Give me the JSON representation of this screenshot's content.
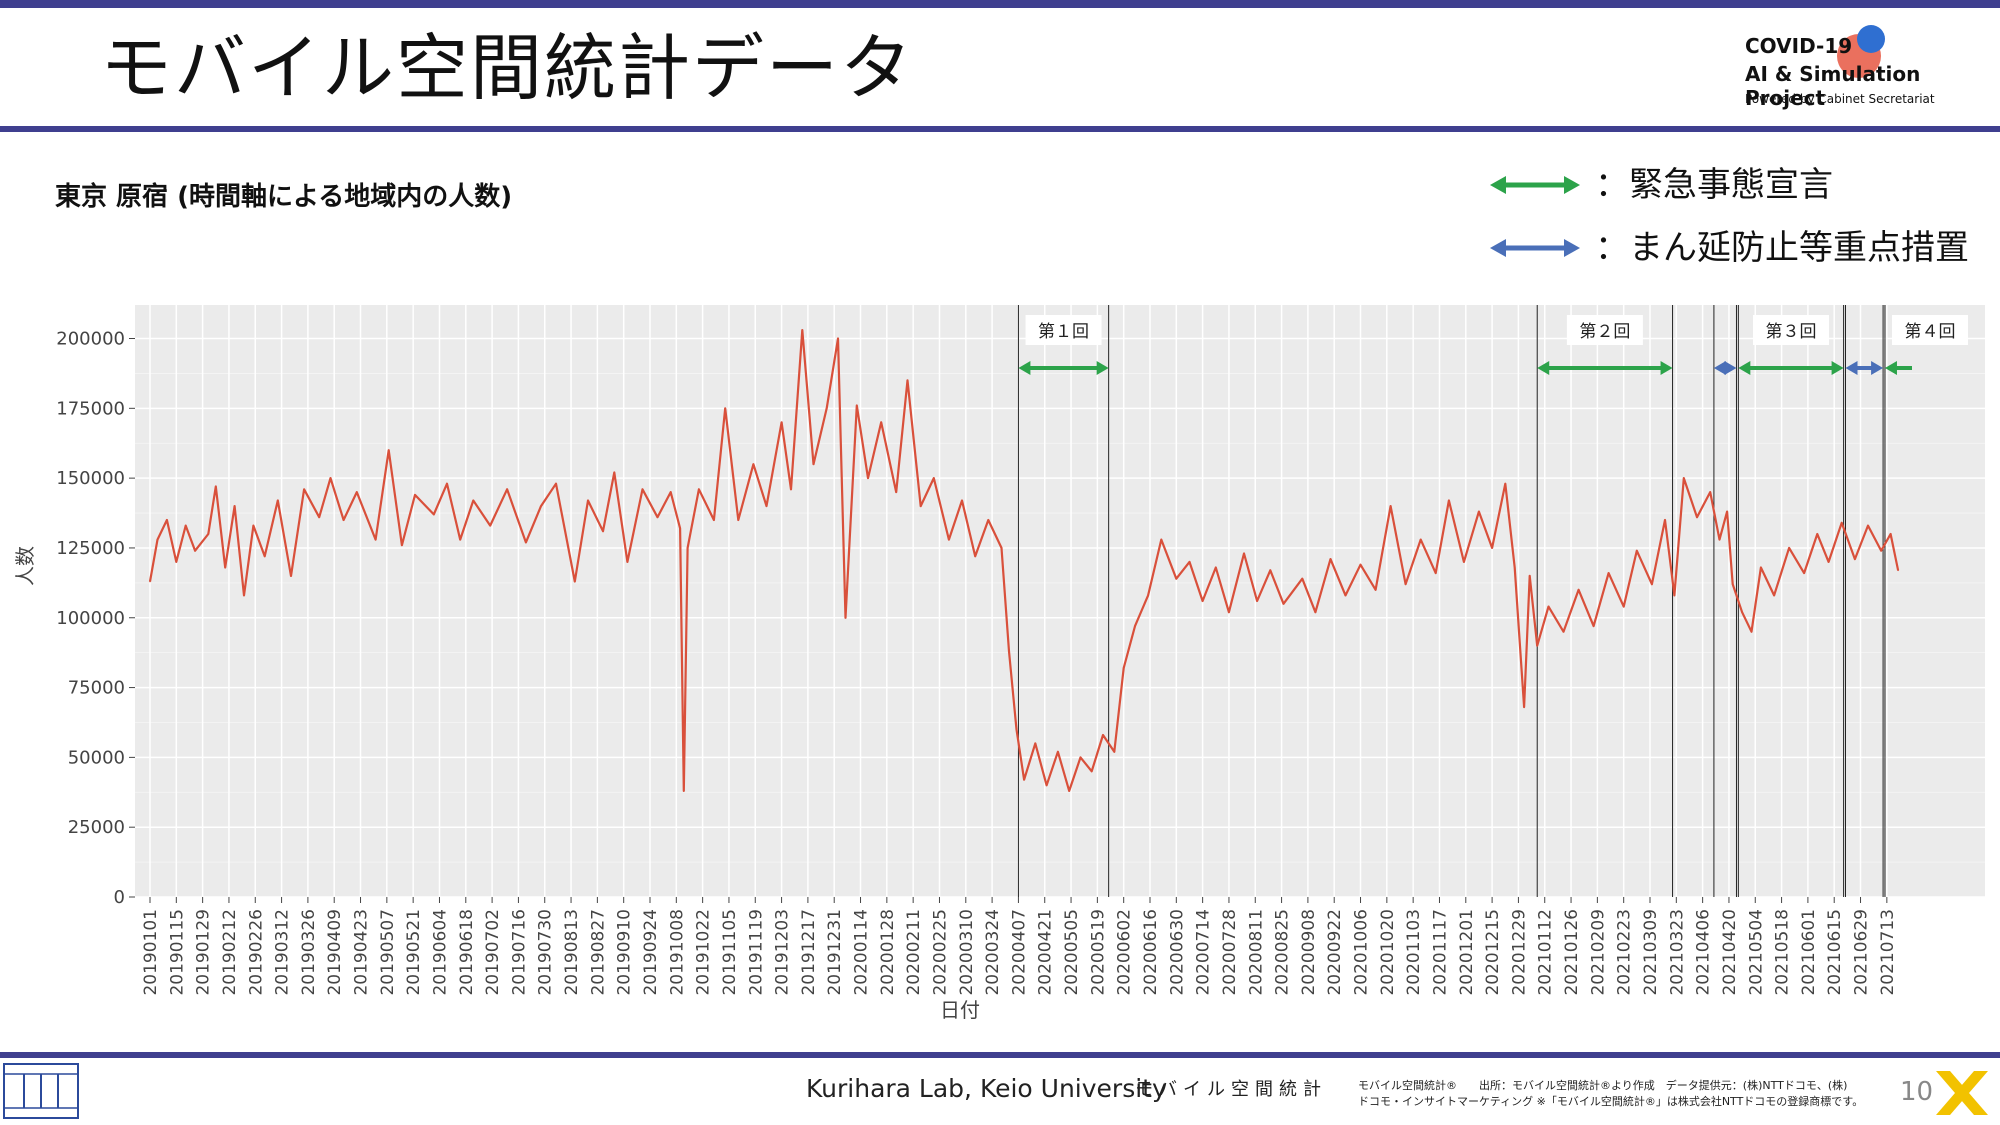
{
  "slide": {
    "title": "モバイル空間統計データ",
    "subtitle": "東京 原宿 (時間軸による地域内の人数)",
    "page_number": "10",
    "footer_lab": "Kurihara Lab, Keio University",
    "footer_logo_text": "モバイル空間統計",
    "footer_note_line1": "モバイル空間統計®　　出所：モバイル空間統計®より作成　データ提供元：(株)NTTドコモ、(株)",
    "footer_note_line2": "ドコモ・インサイトマーケティング ※「モバイル空間統計®」は株式会社NTTドコモの登録商標です。"
  },
  "logo": {
    "line1": "COVID-19",
    "line2": "AI & Simulation Project",
    "line3": "Powered by Cabinet Secretariat"
  },
  "legend": [
    {
      "label": "：緊急事態宣言",
      "color": "#2ca34a"
    },
    {
      "label": "：まん延防止等重点措置",
      "color": "#4a6fb8"
    }
  ],
  "chart_data": {
    "type": "line",
    "xlabel": "日付",
    "ylabel": "人数",
    "ylim": [
      0,
      212000
    ],
    "x_range": [
      "2019-01-01",
      "2021-07-20"
    ],
    "y_ticks": [
      0,
      25000,
      50000,
      75000,
      100000,
      125000,
      150000,
      175000,
      200000
    ],
    "x_tick_labels": [
      "20190101",
      "20190115",
      "20190129",
      "20190212",
      "20190226",
      "20190312",
      "20190326",
      "20190409",
      "20190423",
      "20190507",
      "20190521",
      "20190604",
      "20190618",
      "20190702",
      "20190716",
      "20190730",
      "20190813",
      "20190827",
      "20190910",
      "20190924",
      "20191008",
      "20191022",
      "20191105",
      "20191119",
      "20191203",
      "20191217",
      "20191231",
      "20200114",
      "20200128",
      "20200211",
      "20200225",
      "20200310",
      "20200324",
      "20200407",
      "20200421",
      "20200505",
      "20200519",
      "20200602",
      "20200616",
      "20200630",
      "20200714",
      "20200728",
      "20200811",
      "20200825",
      "20200908",
      "20200922",
      "20201006",
      "20201020",
      "20201103",
      "20201117",
      "20201201",
      "20201215",
      "20201229",
      "20210112",
      "20210126",
      "20210209",
      "20210223",
      "20210309",
      "20210323",
      "20210406",
      "20210420",
      "20210504",
      "20210518",
      "20210601",
      "20210615",
      "20210629",
      "20210713"
    ],
    "grid": true,
    "line_color": "#d9503b",
    "background": "#ebebeb",
    "series": [
      {
        "points": [
          [
            "2019-01-01",
            113000
          ],
          [
            "2019-01-05",
            128000
          ],
          [
            "2019-01-10",
            135000
          ],
          [
            "2019-01-15",
            120000
          ],
          [
            "2019-01-20",
            133000
          ],
          [
            "2019-01-25",
            124000
          ],
          [
            "2019-02-01",
            130000
          ],
          [
            "2019-02-05",
            147000
          ],
          [
            "2019-02-10",
            118000
          ],
          [
            "2019-02-15",
            140000
          ],
          [
            "2019-02-20",
            108000
          ],
          [
            "2019-02-25",
            133000
          ],
          [
            "2019-03-03",
            122000
          ],
          [
            "2019-03-10",
            142000
          ],
          [
            "2019-03-17",
            115000
          ],
          [
            "2019-03-24",
            146000
          ],
          [
            "2019-04-01",
            136000
          ],
          [
            "2019-04-07",
            150000
          ],
          [
            "2019-04-14",
            135000
          ],
          [
            "2019-04-21",
            145000
          ],
          [
            "2019-05-01",
            128000
          ],
          [
            "2019-05-08",
            160000
          ],
          [
            "2019-05-15",
            126000
          ],
          [
            "2019-05-22",
            144000
          ],
          [
            "2019-06-01",
            137000
          ],
          [
            "2019-06-08",
            148000
          ],
          [
            "2019-06-15",
            128000
          ],
          [
            "2019-06-22",
            142000
          ],
          [
            "2019-07-01",
            133000
          ],
          [
            "2019-07-10",
            146000
          ],
          [
            "2019-07-20",
            127000
          ],
          [
            "2019-07-28",
            140000
          ],
          [
            "2019-08-05",
            148000
          ],
          [
            "2019-08-15",
            113000
          ],
          [
            "2019-08-22",
            142000
          ],
          [
            "2019-08-30",
            131000
          ],
          [
            "2019-09-05",
            152000
          ],
          [
            "2019-09-12",
            120000
          ],
          [
            "2019-09-20",
            146000
          ],
          [
            "2019-09-28",
            136000
          ],
          [
            "2019-10-05",
            145000
          ],
          [
            "2019-10-10",
            132000
          ],
          [
            "2019-10-12",
            38000
          ],
          [
            "2019-10-14",
            125000
          ],
          [
            "2019-10-20",
            146000
          ],
          [
            "2019-10-28",
            135000
          ],
          [
            "2019-11-03",
            175000
          ],
          [
            "2019-11-10",
            135000
          ],
          [
            "2019-11-18",
            155000
          ],
          [
            "2019-11-25",
            140000
          ],
          [
            "2019-12-03",
            170000
          ],
          [
            "2019-12-08",
            146000
          ],
          [
            "2019-12-14",
            203000
          ],
          [
            "2019-12-20",
            155000
          ],
          [
            "2019-12-27",
            175000
          ],
          [
            "2020-01-02",
            200000
          ],
          [
            "2020-01-06",
            100000
          ],
          [
            "2020-01-12",
            176000
          ],
          [
            "2020-01-18",
            150000
          ],
          [
            "2020-01-25",
            170000
          ],
          [
            "2020-02-02",
            145000
          ],
          [
            "2020-02-08",
            185000
          ],
          [
            "2020-02-15",
            140000
          ],
          [
            "2020-02-22",
            150000
          ],
          [
            "2020-03-01",
            128000
          ],
          [
            "2020-03-08",
            142000
          ],
          [
            "2020-03-15",
            122000
          ],
          [
            "2020-03-22",
            135000
          ],
          [
            "2020-03-29",
            125000
          ],
          [
            "2020-04-02",
            88000
          ],
          [
            "2020-04-06",
            60000
          ],
          [
            "2020-04-10",
            42000
          ],
          [
            "2020-04-16",
            55000
          ],
          [
            "2020-04-22",
            40000
          ],
          [
            "2020-04-28",
            52000
          ],
          [
            "2020-05-04",
            38000
          ],
          [
            "2020-05-10",
            50000
          ],
          [
            "2020-05-16",
            45000
          ],
          [
            "2020-05-22",
            58000
          ],
          [
            "2020-05-28",
            52000
          ],
          [
            "2020-06-02",
            82000
          ],
          [
            "2020-06-08",
            97000
          ],
          [
            "2020-06-15",
            108000
          ],
          [
            "2020-06-22",
            128000
          ],
          [
            "2020-06-30",
            114000
          ],
          [
            "2020-07-07",
            120000
          ],
          [
            "2020-07-14",
            106000
          ],
          [
            "2020-07-21",
            118000
          ],
          [
            "2020-07-28",
            102000
          ],
          [
            "2020-08-05",
            123000
          ],
          [
            "2020-08-12",
            106000
          ],
          [
            "2020-08-19",
            117000
          ],
          [
            "2020-08-26",
            105000
          ],
          [
            "2020-09-05",
            114000
          ],
          [
            "2020-09-12",
            102000
          ],
          [
            "2020-09-20",
            121000
          ],
          [
            "2020-09-28",
            108000
          ],
          [
            "2020-10-06",
            119000
          ],
          [
            "2020-10-14",
            110000
          ],
          [
            "2020-10-22",
            140000
          ],
          [
            "2020-10-30",
            112000
          ],
          [
            "2020-11-07",
            128000
          ],
          [
            "2020-11-15",
            116000
          ],
          [
            "2020-11-22",
            142000
          ],
          [
            "2020-11-30",
            120000
          ],
          [
            "2020-12-08",
            138000
          ],
          [
            "2020-12-15",
            125000
          ],
          [
            "2020-12-22",
            148000
          ],
          [
            "2020-12-27",
            118000
          ],
          [
            "2021-01-01",
            68000
          ],
          [
            "2021-01-04",
            115000
          ],
          [
            "2021-01-08",
            90000
          ],
          [
            "2021-01-14",
            104000
          ],
          [
            "2021-01-22",
            95000
          ],
          [
            "2021-01-30",
            110000
          ],
          [
            "2021-02-07",
            97000
          ],
          [
            "2021-02-15",
            116000
          ],
          [
            "2021-02-23",
            104000
          ],
          [
            "2021-03-02",
            124000
          ],
          [
            "2021-03-10",
            112000
          ],
          [
            "2021-03-17",
            135000
          ],
          [
            "2021-03-22",
            108000
          ],
          [
            "2021-03-27",
            150000
          ],
          [
            "2021-04-03",
            136000
          ],
          [
            "2021-04-10",
            145000
          ],
          [
            "2021-04-15",
            128000
          ],
          [
            "2021-04-19",
            138000
          ],
          [
            "2021-04-22",
            112000
          ],
          [
            "2021-04-27",
            102000
          ],
          [
            "2021-05-02",
            95000
          ],
          [
            "2021-05-07",
            118000
          ],
          [
            "2021-05-14",
            108000
          ],
          [
            "2021-05-22",
            125000
          ],
          [
            "2021-05-30",
            116000
          ],
          [
            "2021-06-06",
            130000
          ],
          [
            "2021-06-12",
            120000
          ],
          [
            "2021-06-19",
            134000
          ],
          [
            "2021-06-26",
            121000
          ],
          [
            "2021-07-03",
            133000
          ],
          [
            "2021-07-10",
            124000
          ],
          [
            "2021-07-15",
            130000
          ],
          [
            "2021-07-19",
            117000
          ]
        ]
      }
    ],
    "periods": [
      {
        "label": "第１回",
        "type": "emergency",
        "start": "2020-04-07",
        "end": "2020-05-25"
      },
      {
        "label": "第２回",
        "type": "emergency",
        "start": "2021-01-08",
        "end": "2021-03-21"
      },
      {
        "label": "",
        "type": "priority",
        "start": "2021-04-12",
        "end": "2021-04-24"
      },
      {
        "label": "第３回",
        "type": "emergency",
        "start": "2021-04-25",
        "end": "2021-06-20"
      },
      {
        "label": "",
        "type": "priority",
        "start": "2021-06-21",
        "end": "2021-07-11"
      },
      {
        "label": "第４回",
        "type": "emergency",
        "start": "2021-07-12",
        "end": "2021-08-31"
      }
    ]
  }
}
